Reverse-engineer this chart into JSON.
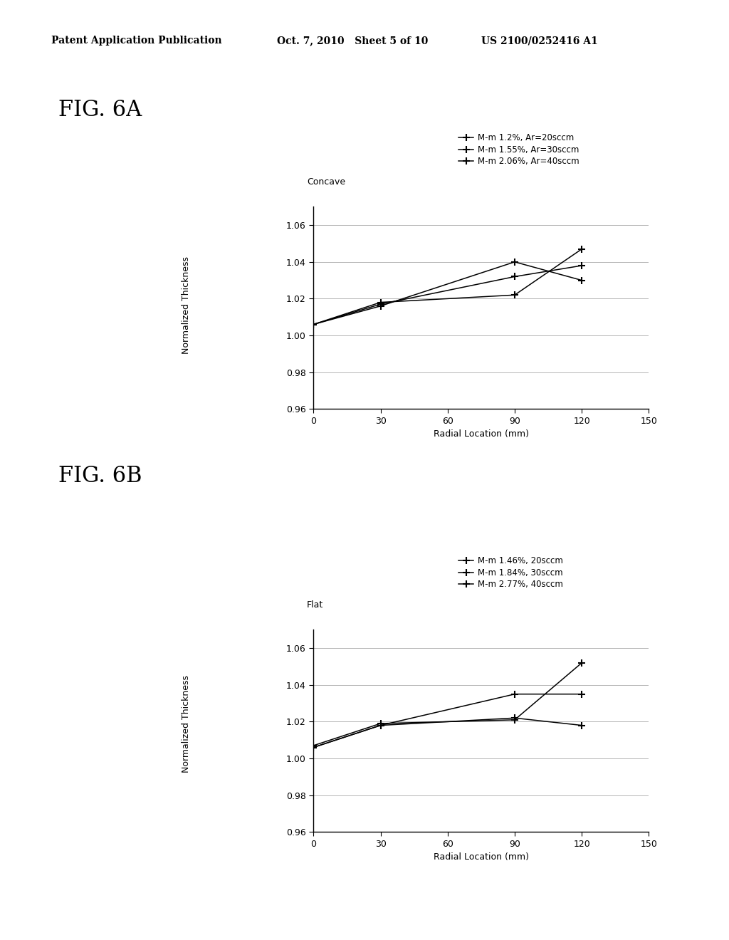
{
  "header_left": "Patent Application Publication",
  "header_mid": "Oct. 7, 2010   Sheet 5 of 10",
  "header_right": "US 2100/0252416 A1",
  "fig6a_label": "FIG. 6A",
  "fig6b_label": "FIG. 6B",
  "x_values": [
    0,
    30,
    90,
    120
  ],
  "fig6a_subtitle": "Concave",
  "fig6a_series": [
    {
      "label": "M-m 1.2%, Ar=20sccm",
      "y": [
        1.006,
        1.018,
        1.022,
        1.047
      ]
    },
    {
      "label": "M-m 1.55%, Ar=30sccm",
      "y": [
        1.006,
        1.017,
        1.032,
        1.038
      ]
    },
    {
      "label": "M-m 2.06%, Ar=40sccm",
      "y": [
        1.006,
        1.016,
        1.04,
        1.03
      ]
    }
  ],
  "fig6b_subtitle": "Flat",
  "fig6b_series": [
    {
      "label": "M-m 1.46%, 20sccm",
      "y": [
        1.007,
        1.019,
        1.021,
        1.052
      ]
    },
    {
      "label": "M-m 1.84%, 30sccm",
      "y": [
        1.006,
        1.018,
        1.035,
        1.035
      ]
    },
    {
      "label": "M-m 2.77%, 40sccm",
      "y": [
        1.006,
        1.018,
        1.022,
        1.018
      ]
    }
  ],
  "ylabel": "Normalized Thickness",
  "xlabel": "Radial Location (mm)",
  "ylim": [
    0.96,
    1.07
  ],
  "xlim": [
    0,
    150
  ],
  "yticks": [
    0.96,
    0.98,
    1.0,
    1.02,
    1.04,
    1.06
  ],
  "xticks": [
    0,
    30,
    60,
    90,
    120,
    150
  ],
  "line_color": "#000000",
  "background_color": "#ffffff",
  "header_fontsize": 10,
  "fig_label_fontsize": 22,
  "axis_fontsize": 9,
  "legend_fontsize": 8.5,
  "ylabel_fontsize": 9
}
